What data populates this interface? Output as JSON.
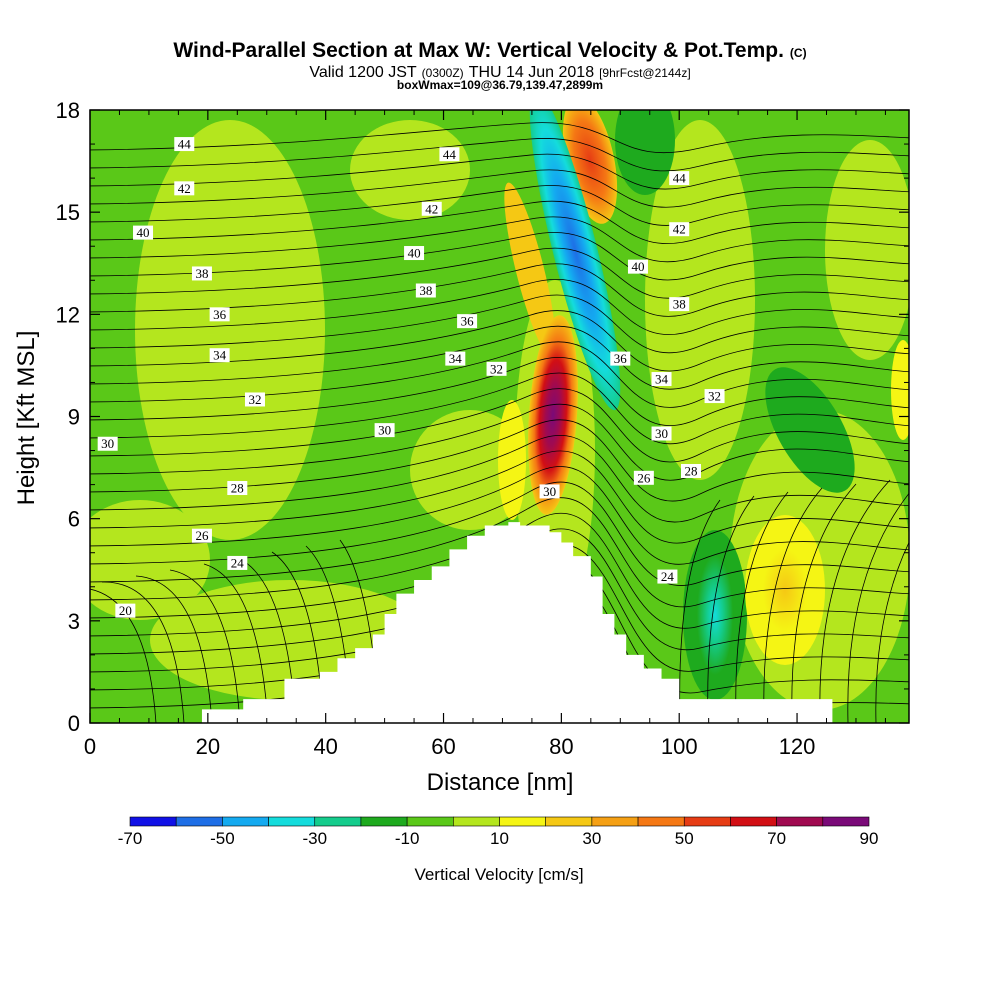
{
  "title": {
    "main": "Wind-Parallel Section at Max W: Vertical Velocity & Pot.Temp.",
    "main_mark": "(C)",
    "valid_prefix": "Valid 1200 JST",
    "valid_utc": "(0300Z)",
    "valid_date": "THU 14 Jun 2018",
    "valid_fcst": "[9hrFcst@2144z]",
    "box": "boxWmax=109@36.79,139.47,2899m"
  },
  "chart_data": {
    "type": "heatmap",
    "xlabel": "Distance [nm]",
    "ylabel": "Height [Kft MSL]",
    "xlim": [
      0,
      139
    ],
    "ylim": [
      0,
      18
    ],
    "xticks": [
      0,
      20,
      40,
      60,
      80,
      100,
      120
    ],
    "yticks": [
      0,
      3,
      6,
      9,
      12,
      15,
      18
    ],
    "colorbar": {
      "label": "Vertical Velocity [cm/s]",
      "levels": [
        -70,
        -60,
        -50,
        -40,
        -30,
        -20,
        -10,
        0,
        10,
        20,
        30,
        40,
        50,
        60,
        70,
        80,
        90
      ],
      "tick_labels": [
        "-70",
        "-50",
        "-30",
        "-10",
        "10",
        "30",
        "50",
        "70",
        "90"
      ],
      "colors": [
        "#1010e6",
        "#1e6ee6",
        "#14aaf0",
        "#14dcdc",
        "#14cc8c",
        "#1eaa1e",
        "#5ac818",
        "#b4e61e",
        "#f5f514",
        "#f5c814",
        "#f5a014",
        "#f57814",
        "#e63c14",
        "#d20f14",
        "#a00a50",
        "#7a0a78"
      ]
    },
    "velocity_regions": [
      {
        "kind": "updraft",
        "x": 79,
        "y": 8.6,
        "max_cm_s": 90
      },
      {
        "kind": "updraft",
        "x": 86,
        "y": 17,
        "max_cm_s": 50
      },
      {
        "kind": "updraft",
        "x": 118,
        "y": 4,
        "max_cm_s": 30
      },
      {
        "kind": "updraft",
        "x": 70,
        "y": 7.5,
        "max_cm_s": 20
      },
      {
        "kind": "downdraft",
        "x": 82,
        "y": 14,
        "min_cm_s": -60
      },
      {
        "kind": "downdraft",
        "x": 106,
        "y": 3.3,
        "min_cm_s": -30
      },
      {
        "kind": "downdraft",
        "x": 94,
        "y": 17,
        "min_cm_s": -20
      },
      {
        "kind": "downdraft",
        "x": 120,
        "y": 8,
        "min_cm_s": -20
      }
    ],
    "terrain": {
      "x": [
        19,
        26,
        33,
        39,
        42,
        45,
        48,
        50,
        52,
        55,
        58,
        61,
        64,
        67,
        71,
        73,
        76,
        78,
        80,
        82,
        85,
        87,
        89,
        91,
        94,
        97,
        100,
        126
      ],
      "height_kft": [
        0.4,
        0.7,
        1.3,
        1.5,
        1.9,
        2.2,
        2.6,
        3.2,
        3.8,
        4.2,
        4.6,
        5.1,
        5.5,
        5.8,
        5.9,
        5.8,
        5.8,
        5.6,
        5.3,
        4.9,
        4.3,
        3.2,
        2.6,
        2.0,
        1.6,
        1.3,
        0.7,
        0.4
      ]
    },
    "theta_contour_labels": [
      {
        "text": "44",
        "x": 16,
        "y": 17.0
      },
      {
        "text": "44",
        "x": 61,
        "y": 16.7
      },
      {
        "text": "44",
        "x": 100,
        "y": 16.0
      },
      {
        "text": "42",
        "x": 16,
        "y": 15.7
      },
      {
        "text": "42",
        "x": 58,
        "y": 15.1
      },
      {
        "text": "42",
        "x": 100,
        "y": 14.5
      },
      {
        "text": "40",
        "x": 9,
        "y": 14.4
      },
      {
        "text": "40",
        "x": 55,
        "y": 13.8
      },
      {
        "text": "40",
        "x": 93,
        "y": 13.4
      },
      {
        "text": "38",
        "x": 19,
        "y": 13.2
      },
      {
        "text": "38",
        "x": 57,
        "y": 12.7
      },
      {
        "text": "38",
        "x": 100,
        "y": 12.3
      },
      {
        "text": "36",
        "x": 22,
        "y": 12.0
      },
      {
        "text": "36",
        "x": 64,
        "y": 11.8
      },
      {
        "text": "36",
        "x": 90,
        "y": 10.7
      },
      {
        "text": "34",
        "x": 22,
        "y": 10.8
      },
      {
        "text": "34",
        "x": 62,
        "y": 10.7
      },
      {
        "text": "34",
        "x": 97,
        "y": 10.1
      },
      {
        "text": "32",
        "x": 28,
        "y": 9.5
      },
      {
        "text": "32",
        "x": 69,
        "y": 10.4
      },
      {
        "text": "32",
        "x": 106,
        "y": 9.6
      },
      {
        "text": "30",
        "x": 3,
        "y": 8.2
      },
      {
        "text": "30",
        "x": 50,
        "y": 8.6
      },
      {
        "text": "30",
        "x": 78,
        "y": 6.8
      },
      {
        "text": "30",
        "x": 97,
        "y": 8.5
      },
      {
        "text": "28",
        "x": 25,
        "y": 6.9
      },
      {
        "text": "28",
        "x": 102,
        "y": 7.4
      },
      {
        "text": "26",
        "x": 19,
        "y": 5.5
      },
      {
        "text": "26",
        "x": 94,
        "y": 7.2
      },
      {
        "text": "24",
        "x": 25,
        "y": 4.7
      },
      {
        "text": "24",
        "x": 98,
        "y": 4.3
      },
      {
        "text": "20",
        "x": 6,
        "y": 3.3
      }
    ]
  }
}
